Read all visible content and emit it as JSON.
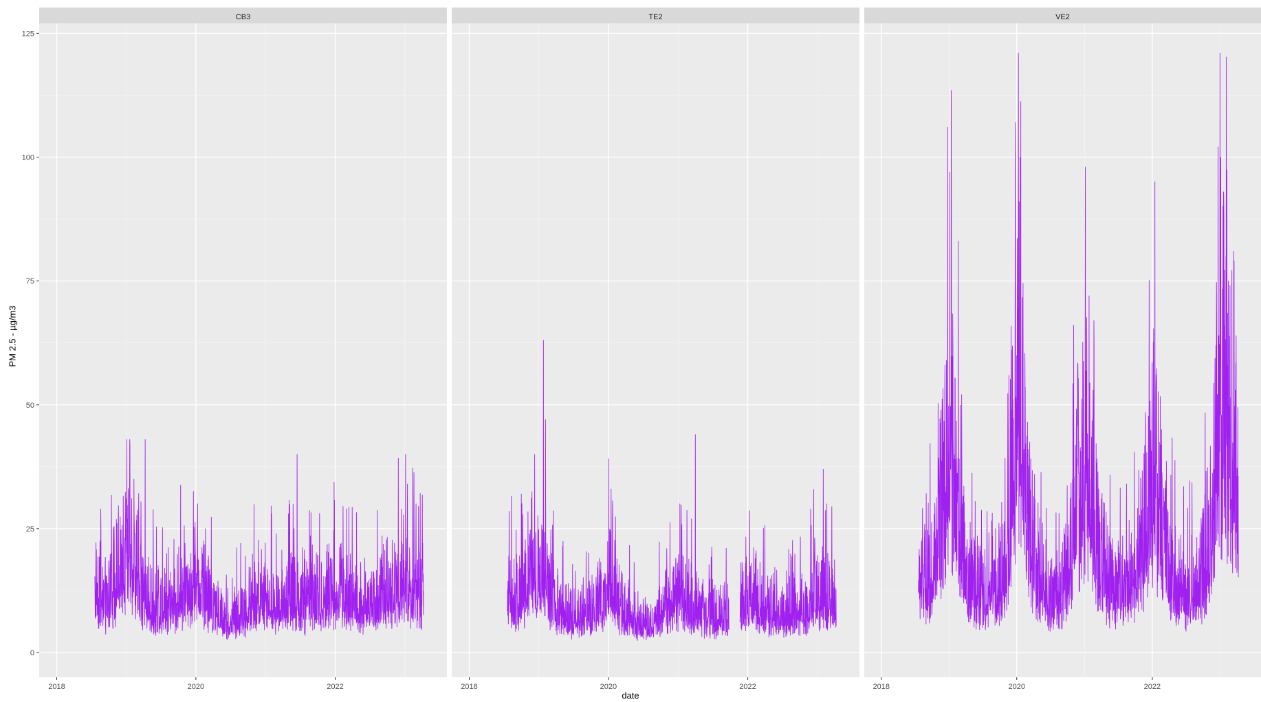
{
  "chart_data": {
    "type": "line",
    "title": "",
    "xlabel": "date",
    "ylabel": "PM 2.5 - µg/m3",
    "ylim": [
      -5,
      127
    ],
    "xlim": [
      "2017-10-01",
      "2023-08-10"
    ],
    "y_ticks": [
      0,
      25,
      50,
      75,
      100,
      125
    ],
    "x_ticks": [
      "2018",
      "2020",
      "2022"
    ],
    "line_color": "#A020F0",
    "panel_background": "#EBEBEB",
    "strip_background": "#D9D9D9",
    "grid": true,
    "facets": [
      {
        "label": "CB3",
        "anchors": [
          [
            "2018-07-20",
            14
          ],
          [
            "2018-09-15",
            10
          ],
          [
            "2018-11-01",
            14
          ],
          [
            "2018-12-15",
            18
          ],
          [
            "2019-02-01",
            20
          ],
          [
            "2019-03-15",
            12
          ],
          [
            "2019-05-01",
            10
          ],
          [
            "2019-07-01",
            9
          ],
          [
            "2019-09-01",
            10
          ],
          [
            "2019-11-01",
            12
          ],
          [
            "2020-01-15",
            15
          ],
          [
            "2020-03-01",
            11
          ],
          [
            "2020-05-01",
            8
          ],
          [
            "2020-07-01",
            6
          ],
          [
            "2020-09-01",
            8
          ],
          [
            "2020-11-01",
            10
          ],
          [
            "2021-01-15",
            10
          ],
          [
            "2021-03-15",
            10
          ],
          [
            "2021-05-15",
            11
          ],
          [
            "2021-07-01",
            9
          ],
          [
            "2021-09-01",
            10
          ],
          [
            "2021-11-01",
            11
          ],
          [
            "2022-01-15",
            12
          ],
          [
            "2022-03-15",
            11
          ],
          [
            "2022-05-15",
            10
          ],
          [
            "2022-07-01",
            9
          ],
          [
            "2022-09-01",
            11
          ],
          [
            "2022-11-01",
            12
          ],
          [
            "2023-01-01",
            15
          ],
          [
            "2023-03-01",
            12
          ],
          [
            "2023-04-10",
            11
          ]
        ],
        "spikes": [
          [
            "2019-01-20",
            42
          ],
          [
            "2019-04-10",
            43
          ],
          [
            "2019-02-10",
            35
          ],
          [
            "2020-01-10",
            30
          ],
          [
            "2020-02-20",
            25
          ],
          [
            "2021-06-15",
            40
          ],
          [
            "2021-05-01",
            28
          ],
          [
            "2021-02-01",
            28
          ],
          [
            "2023-01-05",
            40
          ],
          [
            "2023-01-15",
            34
          ],
          [
            "2023-03-01",
            30
          ],
          [
            "2022-03-01",
            29
          ]
        ],
        "range": [
          1,
          43
        ]
      },
      {
        "label": "TE2",
        "anchors": [
          [
            "2018-07-20",
            12
          ],
          [
            "2018-09-15",
            10
          ],
          [
            "2018-11-01",
            12
          ],
          [
            "2018-12-15",
            15
          ],
          [
            "2019-02-01",
            16
          ],
          [
            "2019-03-15",
            10
          ],
          [
            "2019-05-01",
            8
          ],
          [
            "2019-07-01",
            7
          ],
          [
            "2019-09-01",
            8
          ],
          [
            "2019-11-01",
            9
          ],
          [
            "2020-01-15",
            14
          ],
          [
            "2020-03-01",
            9
          ],
          [
            "2020-05-01",
            7
          ],
          [
            "2020-07-01",
            6
          ],
          [
            "2020-09-01",
            7
          ],
          [
            "2020-11-01",
            9
          ],
          [
            "2021-01-15",
            12
          ],
          [
            "2021-03-15",
            9
          ],
          [
            "2021-05-15",
            8
          ],
          [
            "2021-07-01",
            7
          ],
          [
            "2021-09-01",
            8
          ],
          [
            "2021-10-20",
            6
          ],
          [
            "2021-11-25",
            10
          ],
          [
            "2022-01-15",
            11
          ],
          [
            "2022-03-15",
            9
          ],
          [
            "2022-05-15",
            8
          ],
          [
            "2022-07-01",
            7
          ],
          [
            "2022-09-01",
            8
          ],
          [
            "2022-11-01",
            9
          ],
          [
            "2023-01-01",
            12
          ],
          [
            "2023-03-01",
            11
          ],
          [
            "2023-04-10",
            9
          ]
        ],
        "spikes": [
          [
            "2019-01-25",
            63
          ],
          [
            "2019-02-05",
            47
          ],
          [
            "2018-12-10",
            40
          ],
          [
            "2020-01-15",
            33
          ],
          [
            "2021-04-01",
            44
          ],
          [
            "2021-01-10",
            30
          ],
          [
            "2021-11-20",
            29
          ],
          [
            "2023-02-01",
            37
          ],
          [
            "2023-02-20",
            30
          ],
          [
            "2018-10-01",
            32
          ]
        ],
        "gaps": [
          [
            "2021-09-25",
            "2021-11-20"
          ]
        ],
        "range": [
          1,
          63
        ]
      },
      {
        "label": "VE2",
        "anchors": [
          [
            "2018-07-20",
            15
          ],
          [
            "2018-09-15",
            14
          ],
          [
            "2018-11-01",
            20
          ],
          [
            "2018-12-15",
            35
          ],
          [
            "2019-01-15",
            40
          ],
          [
            "2019-02-15",
            25
          ],
          [
            "2019-04-01",
            15
          ],
          [
            "2019-06-01",
            12
          ],
          [
            "2019-08-01",
            12
          ],
          [
            "2019-10-01",
            14
          ],
          [
            "2019-11-15",
            20
          ],
          [
            "2019-12-20",
            40
          ],
          [
            "2020-01-20",
            55
          ],
          [
            "2020-03-01",
            25
          ],
          [
            "2020-05-01",
            14
          ],
          [
            "2020-07-01",
            10
          ],
          [
            "2020-09-01",
            12
          ],
          [
            "2020-11-01",
            25
          ],
          [
            "2020-12-20",
            35
          ],
          [
            "2021-02-01",
            35
          ],
          [
            "2021-03-15",
            20
          ],
          [
            "2021-05-15",
            14
          ],
          [
            "2021-07-15",
            12
          ],
          [
            "2021-09-15",
            13
          ],
          [
            "2021-11-01",
            20
          ],
          [
            "2021-12-15",
            30
          ],
          [
            "2022-01-15",
            35
          ],
          [
            "2022-03-01",
            22
          ],
          [
            "2022-05-01",
            14
          ],
          [
            "2022-07-01",
            11
          ],
          [
            "2022-09-01",
            13
          ],
          [
            "2022-11-01",
            20
          ],
          [
            "2022-12-20",
            40
          ],
          [
            "2023-01-20",
            50
          ],
          [
            "2023-03-01",
            40
          ],
          [
            "2023-04-10",
            30
          ]
        ],
        "spikes": [
          [
            "2018-12-25",
            106
          ],
          [
            "2019-01-05",
            97
          ],
          [
            "2019-02-20",
            83
          ],
          [
            "2019-12-25",
            107
          ],
          [
            "2020-01-10",
            121
          ],
          [
            "2020-01-20",
            100
          ],
          [
            "2021-01-05",
            98
          ],
          [
            "2021-01-25",
            72
          ],
          [
            "2021-02-20",
            67
          ],
          [
            "2022-01-15",
            95
          ],
          [
            "2022-02-20",
            45
          ],
          [
            "2023-01-05",
            100
          ],
          [
            "2023-01-20",
            93
          ],
          [
            "2023-02-15",
            75
          ],
          [
            "2018-12-10",
            58
          ],
          [
            "2019-04-15",
            20
          ],
          [
            "2021-08-15",
            34
          ]
        ],
        "range": [
          0,
          121
        ]
      }
    ]
  }
}
